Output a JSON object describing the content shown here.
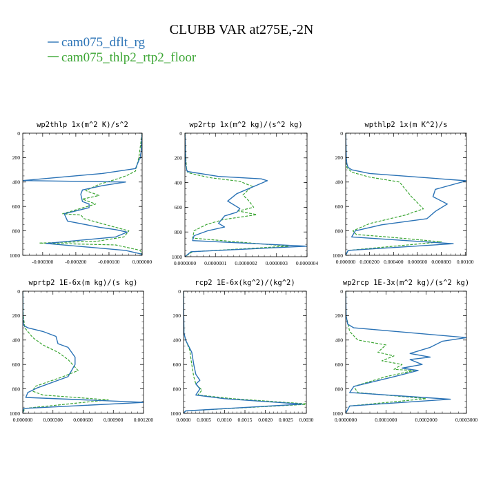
{
  "title": "CLUBB VAR at275E,-2N",
  "legend": [
    {
      "name": "cam075_dflt_rg",
      "color": "#2b73b6"
    },
    {
      "name": "cam075_thlp2_rtp2_floor",
      "color": "#3ca634"
    }
  ],
  "chart_data": [
    {
      "type": "line",
      "title": "wp2thlp   1x(m^2 K)/s^2",
      "xlim": [
        -0.00036,
        0.0
      ],
      "ylim": [
        1000,
        0
      ],
      "xticks": [
        -0.0003,
        -0.0002,
        -0.0001,
        0.0
      ],
      "xtick_labels": [
        "-0.000300",
        "-0.000200",
        "-0.000100",
        "0.000000"
      ],
      "yticks": [
        0,
        200,
        400,
        600,
        800,
        1000
      ],
      "ytick_labels": [
        "0",
        "200",
        "400",
        "600",
        "800",
        "1000"
      ],
      "series": [
        {
          "name": "cam075_dflt_rg",
          "x": [
            0.0,
            -2e-06,
            -3e-06,
            -5e-06,
            -4e-06,
            -8e-06,
            -2e-05,
            -0.00012,
            -0.00036,
            -5e-05,
            -0.00012,
            -0.00018,
            -0.000185,
            -0.00018,
            -0.00016,
            -0.00016,
            -0.000235,
            -0.000225,
            -0.00013,
            -8e-05,
            -4.5e-05,
            -8e-05,
            -0.00029,
            -5e-05,
            -2e-06,
            0.0
          ],
          "y": [
            0,
            100,
            150,
            180,
            200,
            210,
            290,
            330,
            388,
            400,
            430,
            465,
            500,
            560,
            580,
            610,
            660,
            720,
            770,
            790,
            810,
            850,
            903,
            960,
            990,
            1000
          ]
        },
        {
          "name": "cam075_thlp2_rtp2_floor",
          "x": [
            0.0,
            -5e-06,
            -1e-05,
            -2e-05,
            -4.5e-05,
            -7e-05,
            -0.00013,
            -0.00017,
            -0.00013,
            -0.00018,
            -0.00014,
            -0.00024,
            -0.000185,
            -0.000175,
            -9.5e-05,
            -4e-05,
            -5.5e-05,
            -0.000135,
            -0.00031,
            -8e-05,
            -5e-06,
            0.0
          ],
          "y": [
            0,
            100,
            200,
            310,
            345,
            370,
            420,
            470,
            510,
            540,
            580,
            660,
            670,
            700,
            760,
            800,
            850,
            885,
            900,
            915,
            960,
            1000
          ]
        }
      ]
    },
    {
      "type": "line",
      "title": "wp2rtp   1x(m^2 kg)/(s^2 kg)",
      "xlim": [
        0.0,
        4e-07
      ],
      "ylim": [
        1000,
        0
      ],
      "xticks": [
        0.0,
        1e-07,
        2e-07,
        3e-07,
        4e-07
      ],
      "xtick_labels": [
        "0.0000000",
        "0.0000001",
        "0.0000002",
        "0.0000003",
        "0.0000004"
      ],
      "yticks": [
        0,
        200,
        400,
        600,
        800,
        1000
      ],
      "ytick_labels": [
        "0",
        "200",
        "400",
        "600",
        "800",
        "1000"
      ],
      "series": [
        {
          "name": "cam075_dflt_rg",
          "x": [
            0.0,
            2e-09,
            3e-09,
            5e-09,
            8e-09,
            1.1e-07,
            2.5e-07,
            2.7e-07,
            1.7e-07,
            1.4e-07,
            1.8e-07,
            1.7e-07,
            1.3e-07,
            1.2e-07,
            1.1e-07,
            1.3e-07,
            7.5e-08,
            3e-08,
            2.5e-08,
            4e-07,
            2e-08,
            0.0
          ],
          "y": [
            0,
            200,
            260,
            290,
            310,
            350,
            370,
            385,
            490,
            550,
            610,
            640,
            670,
            700,
            730,
            760,
            790,
            830,
            870,
            915,
            960,
            1000
          ]
        },
        {
          "name": "cam075_thlp2_rtp2_floor",
          "x": [
            0.0,
            3e-09,
            5e-09,
            1e-08,
            8e-08,
            1.8e-07,
            2.2e-07,
            1.9e-07,
            2.1e-07,
            2.25e-07,
            1.75e-07,
            2.35e-07,
            1.25e-07,
            7e-08,
            3e-08,
            2.5e-08,
            3.4e-07,
            2.5e-08,
            0.0
          ],
          "y": [
            0,
            200,
            280,
            320,
            360,
            390,
            430,
            500,
            550,
            600,
            630,
            660,
            700,
            740,
            790,
            850,
            915,
            960,
            1000
          ]
        }
      ]
    },
    {
      "type": "line",
      "title": "wpthlp2   1x(m K^2)/s",
      "xlim": [
        0.0,
        0.00101
      ],
      "ylim": [
        1000,
        0
      ],
      "xticks": [
        0.0,
        0.0002,
        0.0004,
        0.0006,
        0.0008,
        0.001
      ],
      "xtick_labels": [
        "0.000000",
        "0.000200",
        "0.000400",
        "0.000600",
        "0.000800",
        "0.00100"
      ],
      "yticks": [
        0,
        200,
        400,
        600,
        800,
        1000
      ],
      "ytick_labels": [
        "0",
        "200",
        "400",
        "600",
        "800",
        "1000"
      ],
      "series": [
        {
          "name": "cam075_dflt_rg",
          "x": [
            0.0,
            5e-06,
            1e-05,
            2e-05,
            5e-05,
            0.0002,
            0.00101,
            0.00075,
            0.00073,
            0.00085,
            0.00075,
            0.00068,
            0.0003,
            8e-05,
            5e-05,
            0.0009,
            2e-05,
            0.0
          ],
          "y": [
            0,
            200,
            250,
            280,
            300,
            330,
            390,
            460,
            520,
            580,
            640,
            700,
            750,
            800,
            850,
            905,
            960,
            1000
          ]
        },
        {
          "name": "cam075_thlp2_rtp2_floor",
          "x": [
            0.0,
            5e-06,
            1e-05,
            5e-05,
            0.0002,
            0.00045,
            0.0005,
            0.00055,
            0.00065,
            0.0005,
            0.0002,
            6e-05,
            9e-05,
            0.00035,
            0.0008,
            2e-05,
            0.0
          ],
          "y": [
            0,
            200,
            280,
            320,
            360,
            400,
            460,
            520,
            620,
            670,
            740,
            800,
            830,
            850,
            890,
            960,
            1000
          ]
        }
      ]
    },
    {
      "type": "line",
      "title": "wprtp2   1E-6x(m kg)/(s kg)",
      "xlim": [
        0.0,
        0.0012
      ],
      "ylim": [
        1000,
        0
      ],
      "xticks": [
        0.0,
        0.0003,
        0.0006,
        0.0009,
        0.0012
      ],
      "xtick_labels": [
        "0.000000",
        "0.000300",
        "0.000600",
        "0.000900",
        "0.001200"
      ],
      "yticks": [
        0,
        200,
        400,
        600,
        800,
        1000
      ],
      "ytick_labels": [
        "0",
        "200",
        "400",
        "600",
        "800",
        "1000"
      ],
      "series": [
        {
          "name": "cam075_dflt_rg",
          "x": [
            0.0,
            2e-06,
            5e-06,
            1e-05,
            5e-05,
            0.0002,
            0.00033,
            0.00035,
            0.00045,
            0.00052,
            0.00052,
            0.00045,
            0.00015,
            5e-05,
            3e-05,
            0.00121,
            1e-05,
            0.0
          ],
          "y": [
            0,
            200,
            260,
            280,
            300,
            330,
            370,
            430,
            460,
            540,
            600,
            700,
            790,
            830,
            870,
            910,
            960,
            1000
          ]
        },
        {
          "name": "cam075_thlp2_rtp2_floor",
          "x": [
            0.0,
            5e-06,
            2e-05,
            0.0001,
            0.0002,
            0.00035,
            0.00045,
            0.00055,
            0.0004,
            0.00012,
            0.0001,
            0.0002,
            0.00085,
            2e-05,
            0.0
          ],
          "y": [
            0,
            200,
            300,
            380,
            440,
            500,
            560,
            650,
            700,
            780,
            820,
            850,
            890,
            960,
            1000
          ]
        }
      ]
    },
    {
      "type": "line",
      "title": "rcp2   1E-6x(kg^2)/(kg^2)",
      "xlim": [
        0.0,
        0.003
      ],
      "ylim": [
        1000,
        0
      ],
      "xticks": [
        0.0,
        0.0005,
        0.001,
        0.0015,
        0.002,
        0.0025,
        0.003
      ],
      "xtick_labels": [
        "0.0000",
        "0.0005",
        "0.0010",
        "0.0015",
        "0.0020",
        "0.0025",
        "0.0030"
      ],
      "yticks": [
        0,
        200,
        400,
        600,
        800,
        1000
      ],
      "ytick_labels": [
        "0",
        "200",
        "400",
        "600",
        "800",
        "1000"
      ],
      "series": [
        {
          "name": "cam075_dflt_rg",
          "x": [
            0.0,
            1e-05,
            5e-05,
            0.0002,
            0.00025,
            0.0003,
            0.0004,
            0.0003,
            0.0004,
            0.0003,
            0.001,
            0.0029,
            5e-05,
            0.0
          ],
          "y": [
            0,
            340,
            400,
            500,
            600,
            680,
            730,
            760,
            800,
            850,
            880,
            925,
            980,
            1000
          ]
        },
        {
          "name": "cam075_thlp2_rtp2_floor",
          "x": [
            0.0,
            1e-05,
            5e-05,
            0.00015,
            0.0002,
            0.00025,
            0.0003,
            0.00045,
            0.00035,
            0.0012,
            0.0031,
            5e-05,
            0.0
          ],
          "y": [
            0,
            340,
            400,
            480,
            600,
            700,
            760,
            810,
            850,
            880,
            925,
            980,
            1000
          ]
        }
      ]
    },
    {
      "type": "line",
      "title": "wp2rcp   1E-3x(m^2 kg)/(s^2 kg)",
      "xlim": [
        0.0,
        0.0003
      ],
      "ylim": [
        1000,
        0
      ],
      "xticks": [
        0.0,
        0.0001,
        0.0002,
        0.0003
      ],
      "xtick_labels": [
        "0.0000000",
        "0.0001000",
        "0.0002000",
        "0.0003000"
      ],
      "yticks": [
        0,
        200,
        400,
        600,
        800,
        1000
      ],
      "ytick_labels": [
        "0",
        "200",
        "400",
        "600",
        "800",
        "1000"
      ],
      "series": [
        {
          "name": "cam075_dflt_rg",
          "x": [
            0.0,
            1e-06,
            5e-06,
            2e-05,
            0.0003,
            0.00024,
            0.00021,
            0.00016,
            0.00021,
            0.00016,
            0.00019,
            0.00014,
            0.00018,
            0.00012,
            2e-05,
            1e-05,
            0.00026,
            1e-05,
            0.0
          ],
          "y": [
            0,
            200,
            270,
            300,
            380,
            410,
            460,
            510,
            540,
            560,
            600,
            630,
            650,
            700,
            780,
            830,
            885,
            940,
            1000
          ]
        },
        {
          "name": "cam075_thlp2_rtp2_floor",
          "x": [
            0.0,
            1e-06,
            1e-05,
            3e-05,
            0.0001,
            8e-05,
            0.00012,
            9e-05,
            0.00014,
            0.00012,
            0.00017,
            0.0001,
            2e-05,
            3e-05,
            0.0002,
            1e-05,
            0.0
          ],
          "y": [
            0,
            200,
            330,
            400,
            440,
            500,
            530,
            570,
            600,
            640,
            650,
            700,
            780,
            830,
            880,
            940,
            1000
          ]
        }
      ]
    }
  ]
}
